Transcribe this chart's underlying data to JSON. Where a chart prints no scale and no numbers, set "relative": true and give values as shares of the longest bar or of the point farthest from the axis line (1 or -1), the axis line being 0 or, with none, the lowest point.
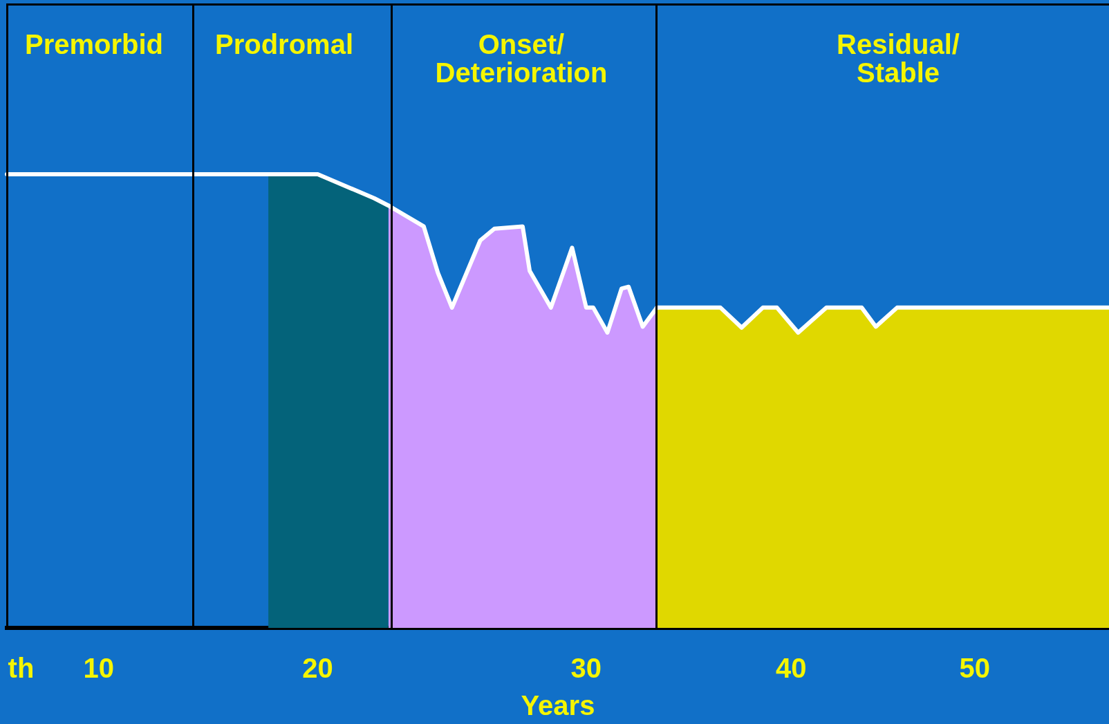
{
  "chart_data": {
    "type": "area",
    "relative": true,
    "xlabel": "Years",
    "legend": false,
    "grid": false,
    "categories": [
      null,
      null,
      "th",
      null,
      null,
      null,
      null,
      null,
      null,
      null,
      null,
      null,
      null,
      "10",
      null,
      null,
      null,
      null,
      null,
      null,
      null,
      null,
      null,
      null,
      null,
      null,
      null,
      null,
      null,
      null,
      null,
      null,
      null,
      null,
      null,
      null,
      null,
      null,
      null,
      null,
      null,
      null,
      null,
      null,
      "20",
      null,
      null,
      null,
      null,
      null,
      null,
      null,
      null,
      null,
      null,
      null,
      null,
      null,
      null,
      null,
      null,
      null,
      null,
      null,
      null,
      null,
      null,
      null,
      null,
      null,
      null,
      null,
      null,
      null,
      null,
      null,
      null,
      null,
      null,
      null,
      null,
      null,
      "30",
      null,
      null,
      null,
      null,
      null,
      null,
      null,
      null,
      null,
      null,
      null,
      null,
      null,
      null,
      null,
      null,
      null,
      null,
      null,
      null,
      null,
      null,
      null,
      null,
      null,
      null,
      null,
      null,
      "40",
      null,
      null,
      null,
      null,
      null,
      null,
      null,
      null,
      null,
      null,
      null,
      null,
      null,
      null,
      null,
      null,
      null,
      null,
      null,
      null,
      null,
      null,
      null,
      null,
      null,
      "50",
      null,
      null,
      null,
      null,
      null,
      null,
      null,
      null,
      null,
      null,
      null,
      null,
      null,
      null,
      null,
      null,
      null,
      null,
      null
    ],
    "series": [
      {
        "type": "line",
        "color": "#ffffff",
        "values": [
          1,
          null,
          null,
          null,
          null,
          null,
          null,
          null,
          null,
          null,
          null,
          null,
          null,
          null,
          null,
          null,
          null,
          null,
          null,
          null,
          null,
          null,
          null,
          null,
          null,
          null,
          null,
          null,
          null,
          null,
          null,
          null,
          null,
          null,
          null,
          null,
          null,
          1,
          null,
          null,
          null,
          null,
          null,
          null,
          null,
          null,
          null,
          null,
          null,
          null,
          null,
          null,
          null,
          null,
          null,
          null,
          null,
          null,
          null,
          null,
          null,
          null,
          null,
          null,
          null,
          null,
          null,
          null,
          null,
          null,
          null,
          null,
          null,
          null,
          null,
          null,
          null,
          null,
          null,
          null,
          null,
          null,
          null,
          null,
          null,
          null,
          null,
          null,
          null,
          null,
          null,
          null,
          null,
          null,
          null,
          null,
          null,
          null,
          null,
          null,
          null,
          null,
          null,
          null,
          null,
          null,
          null,
          null,
          null,
          null,
          null,
          null,
          null,
          null,
          null,
          null,
          null,
          null,
          null,
          null,
          null,
          null,
          null,
          null,
          null,
          null,
          null,
          null,
          null,
          null,
          null,
          null,
          null,
          null,
          null,
          null,
          null,
          null,
          null,
          null,
          null,
          null,
          null,
          null,
          null,
          null,
          null,
          null,
          null,
          null,
          null,
          null,
          null,
          null,
          null,
          null,
          null
        ]
      },
      {
        "type": "area",
        "color": "#04637a",
        "values": [
          null,
          null,
          null,
          null,
          null,
          null,
          null,
          null,
          null,
          null,
          null,
          null,
          null,
          null,
          null,
          null,
          null,
          null,
          null,
          null,
          null,
          null,
          null,
          null,
          null,
          null,
          null,
          null,
          null,
          null,
          null,
          null,
          null,
          null,
          null,
          null,
          null,
          1,
          null,
          null,
          null,
          null,
          null,
          null,
          1,
          null,
          null,
          null,
          null,
          null,
          null,
          null,
          0.947,
          null,
          0.931,
          null,
          null,
          null,
          null,
          null,
          null,
          null,
          null,
          null,
          null,
          null,
          null,
          null,
          null,
          null,
          null,
          null,
          null,
          null,
          null,
          null,
          null,
          null,
          null,
          null,
          null,
          null,
          null,
          null,
          null,
          null,
          null,
          null,
          null,
          null,
          null,
          null,
          null,
          null,
          null,
          null,
          null,
          null,
          null,
          null,
          null,
          null,
          null,
          null,
          null,
          null,
          null,
          null,
          null,
          null,
          null,
          null,
          null,
          null,
          null,
          null,
          null,
          null,
          null,
          null,
          null,
          null,
          null,
          null,
          null,
          null,
          null,
          null,
          null,
          null,
          null,
          null,
          null,
          null,
          null,
          null,
          null,
          null,
          null,
          null,
          null,
          null,
          null,
          null,
          null,
          null,
          null,
          null,
          null,
          null,
          null,
          null,
          null,
          null,
          null,
          null,
          null
        ]
      },
      {
        "type": "area",
        "color": "#cc99ff",
        "values": [
          null,
          null,
          null,
          null,
          null,
          null,
          null,
          null,
          null,
          null,
          null,
          null,
          null,
          null,
          null,
          null,
          null,
          null,
          null,
          null,
          null,
          null,
          null,
          null,
          null,
          null,
          null,
          null,
          null,
          null,
          null,
          null,
          null,
          null,
          null,
          null,
          null,
          null,
          null,
          null,
          null,
          null,
          null,
          null,
          null,
          null,
          null,
          null,
          null,
          null,
          null,
          null,
          null,
          null,
          0.931,
          null,
          null,
          null,
          null,
          0.885,
          null,
          0.783,
          null,
          0.706,
          null,
          null,
          null,
          0.854,
          null,
          0.88,
          null,
          null,
          null,
          0.885,
          0.787,
          null,
          null,
          0.706,
          null,
          0.794,
          0.838,
          null,
          0.706,
          0.706,
          null,
          0.651,
          null,
          0.748,
          0.752,
          null,
          0.664,
          null,
          0.706,
          null,
          null,
          null,
          null,
          null,
          null,
          null,
          null,
          null,
          null,
          null,
          null,
          null,
          null,
          null,
          null,
          null,
          null,
          null,
          null,
          null,
          null,
          null,
          null,
          null,
          null,
          null,
          null,
          null,
          null,
          null,
          null,
          null,
          null,
          null,
          null,
          null,
          null,
          null,
          null,
          null,
          null,
          null,
          null,
          null,
          null,
          null,
          null,
          null,
          null,
          null,
          null,
          null,
          null,
          null,
          null,
          null,
          null,
          null,
          null,
          null,
          null,
          null,
          null
        ]
      },
      {
        "type": "area",
        "color": "#e0d800",
        "values": [
          null,
          null,
          null,
          null,
          null,
          null,
          null,
          null,
          null,
          null,
          null,
          null,
          null,
          null,
          null,
          null,
          null,
          null,
          null,
          null,
          null,
          null,
          null,
          null,
          null,
          null,
          null,
          null,
          null,
          null,
          null,
          null,
          null,
          null,
          null,
          null,
          null,
          null,
          null,
          null,
          null,
          null,
          null,
          null,
          null,
          null,
          null,
          null,
          null,
          null,
          null,
          null,
          null,
          null,
          null,
          null,
          null,
          null,
          null,
          null,
          null,
          null,
          null,
          null,
          null,
          null,
          null,
          null,
          null,
          null,
          null,
          null,
          null,
          null,
          null,
          null,
          null,
          null,
          null,
          null,
          null,
          null,
          null,
          null,
          null,
          null,
          null,
          null,
          null,
          null,
          null,
          null,
          0.706,
          null,
          null,
          null,
          null,
          null,
          null,
          null,
          null,
          0.706,
          null,
          null,
          0.662,
          null,
          null,
          0.706,
          null,
          0.706,
          null,
          null,
          0.651,
          null,
          null,
          null,
          0.706,
          null,
          null,
          null,
          null,
          0.706,
          null,
          0.664,
          null,
          null,
          0.706,
          null,
          null,
          null,
          null,
          null,
          null,
          null,
          null,
          null,
          null,
          null,
          null,
          null,
          null,
          null,
          null,
          null,
          null,
          null,
          null,
          null,
          null,
          null,
          null,
          null,
          null,
          null,
          null,
          null,
          0.706
        ]
      }
    ],
    "annotations": [
      "Premorbid",
      "Prodromal",
      "Onset/\nDeterioration",
      "Residual/\nStable"
    ]
  }
}
